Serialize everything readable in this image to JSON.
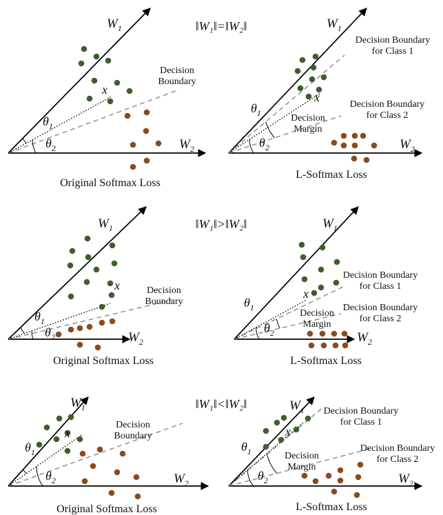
{
  "colors": {
    "class1_points": "#3d5e2f",
    "class2_points": "#8b4a1c",
    "axes": "#000000",
    "boundary": "#888888"
  },
  "symbols": {
    "w1": "W",
    "w1_sub": "1",
    "w2": "W",
    "w2_sub": "2",
    "theta": "θ",
    "theta1_sub": "1",
    "theta2_sub": "2",
    "x": "x"
  },
  "rows": [
    {
      "condition": "‖W₁‖=‖W₂‖",
      "original": {
        "caption": "Original Softmax Loss",
        "boundary_label": [
          "Decision",
          "Boundary"
        ]
      },
      "lsoftmax": {
        "caption": "L-Softmax Loss",
        "boundary1_label": [
          "Decision Boundary",
          "for Class 1"
        ],
        "boundary2_label": [
          "Decision Boundary",
          "for Class 2"
        ],
        "margin_label": [
          "Decision",
          "Margin"
        ]
      }
    },
    {
      "condition": "‖W₁‖>‖W₂‖",
      "original": {
        "caption": "Original Softmax Loss",
        "boundary_label": [
          "Decision",
          "Boundary"
        ]
      },
      "lsoftmax": {
        "caption": "L-Softmax Loss",
        "boundary1_label": [
          "Decision Boundary",
          "for Class 1"
        ],
        "boundary2_label": [
          "Decision Boundary",
          "for Class 2"
        ],
        "margin_label": [
          "Decision",
          "Margin"
        ]
      }
    },
    {
      "condition": "‖W₁‖<‖W₂‖",
      "original": {
        "caption": "Original Softmax Loss",
        "boundary_label": [
          "Decision",
          "Boundary"
        ]
      },
      "lsoftmax": {
        "caption": "L-Softmax Loss",
        "boundary1_label": [
          "Decision Boundary",
          "for Class 1"
        ],
        "boundary2_label": [
          "Decision Boundary",
          "for Class 2"
        ],
        "margin_label": [
          "Decision",
          "Margin"
        ]
      }
    }
  ]
}
